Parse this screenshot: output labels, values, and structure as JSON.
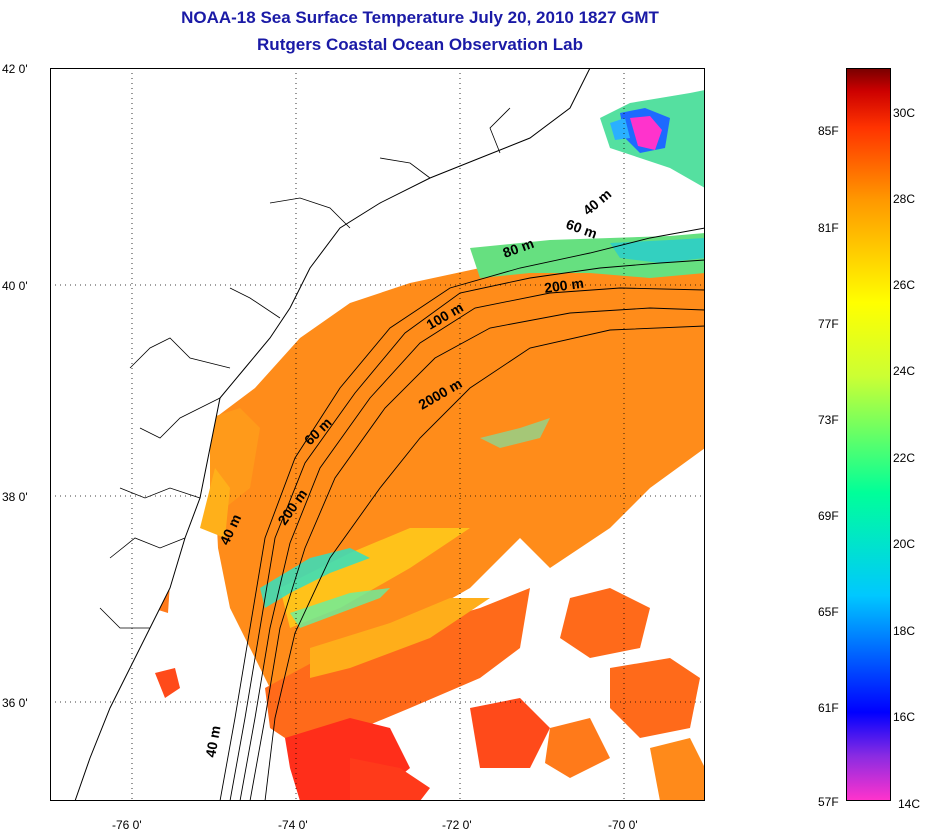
{
  "title": {
    "line1": "NOAA-18 Sea Surface Temperature July 20, 2010 1827 GMT",
    "line2": "Rutgers Coastal Ocean Observation Lab"
  },
  "map": {
    "lat_labels": [
      "42 0'",
      "40 0'",
      "38 0'",
      "36 0'"
    ],
    "lon_labels": [
      "-76 0'",
      "-74 0'",
      "-72 0'",
      "-70 0'"
    ],
    "contour_labels": [
      "40 m",
      "60 m",
      "80 m",
      "200 m",
      "100 m",
      "2000 m",
      "60 m",
      "40 m",
      "200 m",
      "40 m"
    ],
    "lat_range": [
      35.0,
      42.0
    ],
    "lon_range": [
      -77.0,
      -69.0
    ],
    "grid": "dotted"
  },
  "colorbar": {
    "f_labels": [
      "85F",
      "81F",
      "77F",
      "73F",
      "69F",
      "65F",
      "61F",
      "57F"
    ],
    "c_labels": [
      "30C",
      "28C",
      "26C",
      "24C",
      "22C",
      "20C",
      "18C",
      "16C",
      "14C"
    ],
    "colors": [
      "#ff33cc",
      "#8a2be2",
      "#0000ff",
      "#00c8ff",
      "#00ff99",
      "#ccff33",
      "#ffff00",
      "#ff9900",
      "#ff3300",
      "#cc0000",
      "#7a0000"
    ]
  }
}
